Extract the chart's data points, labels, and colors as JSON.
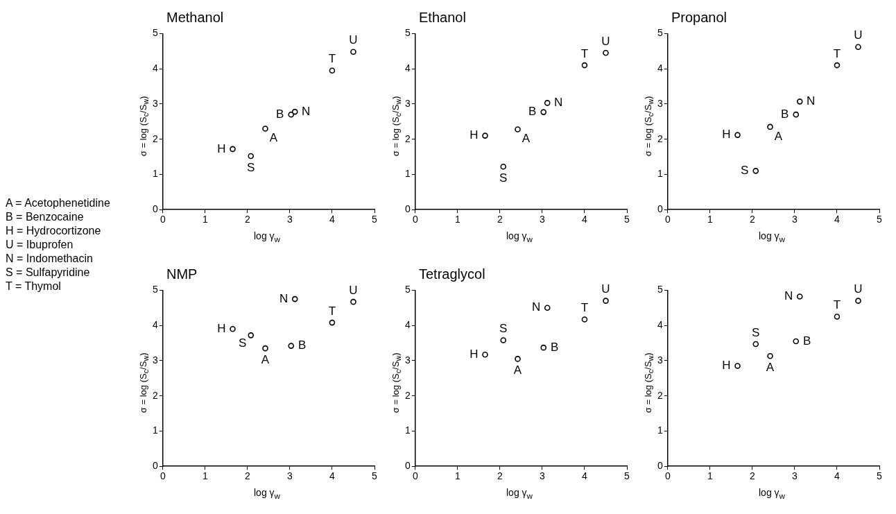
{
  "chart_data": [
    {
      "type": "other",
      "annotations": [
        "A = Acetophenetidine",
        "B = Benzocaine",
        "H = Hydrocortizone",
        "U = Ibuprofen",
        "N = Indomethacin",
        "S = Sulfapyridine",
        "T = Thymol"
      ]
    },
    {
      "type": "scatter",
      "title": "Methanol",
      "xlabel": "log γ$_{w}$",
      "ylabel": "σ = log (S$_{c}$/S$_{w}$)",
      "marker": "circle",
      "xlim": [
        0,
        5
      ],
      "ylim": [
        0,
        5
      ],
      "xticks": [
        0,
        1,
        2,
        3,
        4,
        5
      ],
      "yticks": [
        0,
        1,
        2,
        3,
        4,
        5
      ],
      "x": [
        1.65,
        2.08,
        2.42,
        3.03,
        3.12,
        4.0,
        4.5
      ],
      "series": [
        {
          "color": "#000000",
          "values": [
            1.72,
            1.52,
            2.3,
            2.7,
            2.78,
            3.95,
            4.48
          ]
        }
      ],
      "annotations": [
        {
          "text": "H",
          "x": 1.65,
          "y": 1.72
        },
        {
          "text": "S",
          "x": 2.08,
          "y": 1.52
        },
        {
          "text": "A",
          "x": 2.42,
          "y": 2.3
        },
        {
          "text": "B",
          "x": 3.03,
          "y": 2.7
        },
        {
          "text": "N",
          "x": 3.12,
          "y": 2.78
        },
        {
          "text": "T",
          "x": 4.0,
          "y": 3.95
        },
        {
          "text": "U",
          "x": 4.5,
          "y": 4.48
        }
      ]
    },
    {
      "type": "scatter",
      "title": "Ethanol",
      "xlabel": "log γ$_{w}$",
      "ylabel": "σ = log (S$_{c}$/S$_{w}$)",
      "marker": "circle",
      "xlim": [
        0,
        5
      ],
      "ylim": [
        0,
        5
      ],
      "xticks": [
        0,
        1,
        2,
        3,
        4,
        5
      ],
      "yticks": [
        0,
        1,
        2,
        3,
        4,
        5
      ],
      "x": [
        1.65,
        2.08,
        2.42,
        3.03,
        3.12,
        4.0,
        4.5
      ],
      "series": [
        {
          "color": "#000000",
          "values": [
            2.1,
            1.22,
            2.28,
            2.77,
            3.03,
            4.1,
            4.45
          ]
        }
      ],
      "annotations": [
        {
          "text": "H",
          "x": 1.65,
          "y": 2.1
        },
        {
          "text": "S",
          "x": 2.08,
          "y": 1.22
        },
        {
          "text": "A",
          "x": 2.42,
          "y": 2.28
        },
        {
          "text": "B",
          "x": 3.03,
          "y": 2.77
        },
        {
          "text": "N",
          "x": 3.12,
          "y": 3.03
        },
        {
          "text": "T",
          "x": 4.0,
          "y": 4.1
        },
        {
          "text": "U",
          "x": 4.5,
          "y": 4.45
        }
      ]
    },
    {
      "type": "scatter",
      "title": "Propanol",
      "xlabel": "log γ$_{w}$",
      "ylabel": "σ = log (S$_{c}$/S$_{w}$)",
      "marker": "circle",
      "xlim": [
        0,
        5
      ],
      "ylim": [
        0,
        5
      ],
      "xticks": [
        0,
        1,
        2,
        3,
        4,
        5
      ],
      "yticks": [
        0,
        1,
        2,
        3,
        4,
        5
      ],
      "x": [
        1.65,
        2.08,
        2.42,
        3.03,
        3.12,
        4.0,
        4.5
      ],
      "series": [
        {
          "color": "#000000",
          "values": [
            2.12,
            1.1,
            2.35,
            2.7,
            3.07,
            4.1,
            4.62
          ]
        }
      ],
      "annotations": [
        {
          "text": "H",
          "x": 1.65,
          "y": 2.12
        },
        {
          "text": "S",
          "x": 2.08,
          "y": 1.1
        },
        {
          "text": "A",
          "x": 2.42,
          "y": 2.35
        },
        {
          "text": "B",
          "x": 3.03,
          "y": 2.7
        },
        {
          "text": "N",
          "x": 3.12,
          "y": 3.07
        },
        {
          "text": "T",
          "x": 4.0,
          "y": 4.1
        },
        {
          "text": "U",
          "x": 4.5,
          "y": 4.62
        }
      ]
    },
    {
      "type": "scatter",
      "title": "NMP",
      "xlabel": "log γ$_{w}$",
      "ylabel": "σ = log (S$_{c}$/S$_{w}$)",
      "marker": "circle",
      "xlim": [
        0,
        5
      ],
      "ylim": [
        0,
        5
      ],
      "xticks": [
        0,
        1,
        2,
        3,
        4,
        5
      ],
      "yticks": [
        0,
        1,
        2,
        3,
        4,
        5
      ],
      "x": [
        1.65,
        2.08,
        2.42,
        3.03,
        3.12,
        4.0,
        4.5
      ],
      "series": [
        {
          "color": "#000000",
          "values": [
            3.9,
            3.72,
            3.35,
            3.42,
            4.75,
            4.08,
            4.67
          ]
        }
      ],
      "annotations": [
        {
          "text": "H",
          "x": 1.65,
          "y": 3.9
        },
        {
          "text": "S",
          "x": 2.08,
          "y": 3.72
        },
        {
          "text": "A",
          "x": 2.42,
          "y": 3.35
        },
        {
          "text": "B",
          "x": 3.03,
          "y": 3.42
        },
        {
          "text": "N",
          "x": 3.12,
          "y": 4.75
        },
        {
          "text": "T",
          "x": 4.0,
          "y": 4.08
        },
        {
          "text": "U",
          "x": 4.5,
          "y": 4.67
        }
      ]
    },
    {
      "type": "scatter",
      "title": "Tetraglycol",
      "xlabel": "log γ$_{w}$",
      "ylabel": "σ = log (S$_{c}$/S$_{w}$)",
      "marker": "circle",
      "xlim": [
        0,
        5
      ],
      "ylim": [
        0,
        5
      ],
      "xticks": [
        0,
        1,
        2,
        3,
        4,
        5
      ],
      "yticks": [
        0,
        1,
        2,
        3,
        4,
        5
      ],
      "x": [
        1.65,
        2.08,
        2.42,
        3.03,
        3.12,
        4.0,
        4.5
      ],
      "series": [
        {
          "color": "#000000",
          "values": [
            3.17,
            3.58,
            3.05,
            3.37,
            4.5,
            4.17,
            4.7
          ]
        }
      ],
      "annotations": [
        {
          "text": "H",
          "x": 1.65,
          "y": 3.17
        },
        {
          "text": "S",
          "x": 2.08,
          "y": 3.58
        },
        {
          "text": "A",
          "x": 2.42,
          "y": 3.05
        },
        {
          "text": "B",
          "x": 3.03,
          "y": 3.37
        },
        {
          "text": "N",
          "x": 3.12,
          "y": 4.5
        },
        {
          "text": "T",
          "x": 4.0,
          "y": 4.17
        },
        {
          "text": "U",
          "x": 4.5,
          "y": 4.7
        }
      ]
    },
    {
      "type": "scatter",
      "xlabel": "log γ$_{w}$",
      "ylabel": "σ = log (S$_{c}$/S$_{w}$)",
      "marker": "circle",
      "xlim": [
        0,
        5
      ],
      "ylim": [
        0,
        5
      ],
      "xticks": [
        0,
        1,
        2,
        3,
        4,
        5
      ],
      "yticks": [
        0,
        1,
        2,
        3,
        4,
        5
      ],
      "x": [
        1.65,
        2.08,
        2.42,
        3.03,
        3.12,
        4.0,
        4.5
      ],
      "series": [
        {
          "color": "#000000",
          "values": [
            2.85,
            3.47,
            3.13,
            3.55,
            4.82,
            4.25,
            4.7
          ]
        }
      ],
      "annotations": [
        {
          "text": "H",
          "x": 1.65,
          "y": 2.85
        },
        {
          "text": "S",
          "x": 2.08,
          "y": 3.47
        },
        {
          "text": "A",
          "x": 2.42,
          "y": 3.13
        },
        {
          "text": "B",
          "x": 3.03,
          "y": 3.55
        },
        {
          "text": "N",
          "x": 3.12,
          "y": 4.82
        },
        {
          "text": "T",
          "x": 4.0,
          "y": 4.25
        },
        {
          "text": "U",
          "x": 4.5,
          "y": 4.7
        }
      ]
    }
  ]
}
